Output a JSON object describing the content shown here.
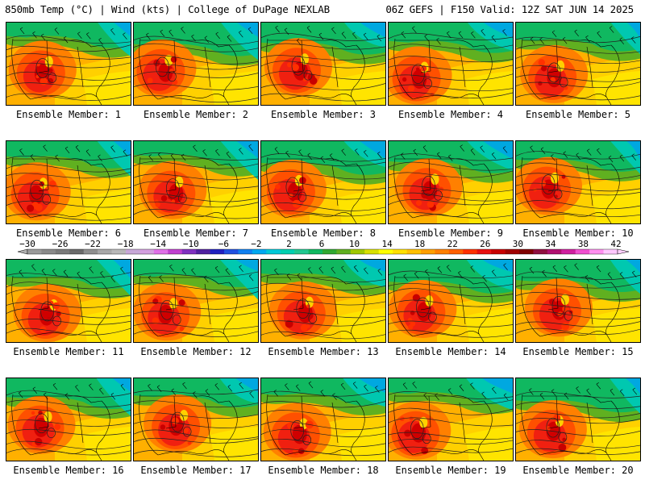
{
  "header": {
    "left_title": "850mb Temp (°C) | Wind (kts) | College of DuPage NEXLAB",
    "right_title": "06Z GEFS | F150 Valid: 12Z SAT JUN 14 2025"
  },
  "panels": [
    {
      "caption": "Ensemble Member: 1"
    },
    {
      "caption": "Ensemble Member: 2"
    },
    {
      "caption": "Ensemble Member: 3"
    },
    {
      "caption": "Ensemble Member: 4"
    },
    {
      "caption": "Ensemble Member: 5"
    },
    {
      "caption": "Ensemble Member: 6"
    },
    {
      "caption": "Ensemble Member: 7"
    },
    {
      "caption": "Ensemble Member: 8"
    },
    {
      "caption": "Ensemble Member: 9"
    },
    {
      "caption": "Ensemble Member: 10"
    },
    {
      "caption": "Ensemble Member: 11"
    },
    {
      "caption": "Ensemble Member: 12"
    },
    {
      "caption": "Ensemble Member: 13"
    },
    {
      "caption": "Ensemble Member: 14"
    },
    {
      "caption": "Ensemble Member: 15"
    },
    {
      "caption": "Ensemble Member: 16"
    },
    {
      "caption": "Ensemble Member: 17"
    },
    {
      "caption": "Ensemble Member: 18"
    },
    {
      "caption": "Ensemble Member: 19"
    },
    {
      "caption": "Ensemble Member: 20"
    }
  ],
  "colorbar": {
    "labels": [
      "−30",
      "−26",
      "−22",
      "−18",
      "−14",
      "−10",
      "−6",
      "−2",
      "2",
      "6",
      "10",
      "14",
      "18",
      "22",
      "26",
      "30",
      "34",
      "38",
      "42"
    ],
    "colors": [
      "#9a9a9a",
      "#8a8a8a",
      "#7a7a7a",
      "#6a6a6a",
      "#8f8f8f",
      "#a8a8a8",
      "#b8b8b8",
      "#c8a8d8",
      "#d4a0e0",
      "#e070e8",
      "#c040d0",
      "#8030c0",
      "#5020a0",
      "#2020c0",
      "#2050e0",
      "#1080f0",
      "#00a8f0",
      "#00c8d8",
      "#00d0b0",
      "#20c890",
      "#10b860",
      "#30a830",
      "#60b020",
      "#a0c800",
      "#d8e000",
      "#ffff00",
      "#ffe000",
      "#ffc000",
      "#ffa000",
      "#ff8000",
      "#ff6000",
      "#ff3000",
      "#e81010",
      "#c80000",
      "#a00000",
      "#800000",
      "#901040",
      "#b01070",
      "#d020a0",
      "#f050d0",
      "#ff90f0",
      "#ffc8ff"
    ]
  }
}
